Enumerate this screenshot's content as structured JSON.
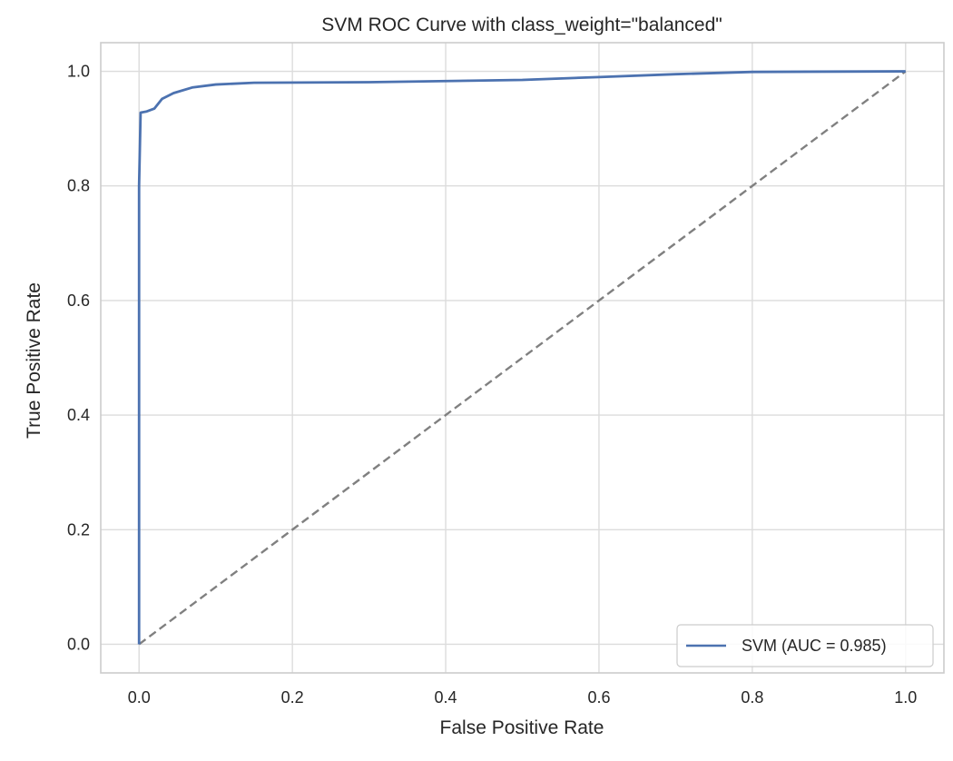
{
  "chart_data": {
    "type": "line",
    "title": "SVM ROC Curve with class_weight=\"balanced\"",
    "xlabel": "False Positive Rate",
    "ylabel": "True Positive Rate",
    "xlim": [
      -0.05,
      1.05
    ],
    "ylim": [
      -0.05,
      1.05
    ],
    "xticks": [
      0.0,
      0.2,
      0.4,
      0.6,
      0.8,
      1.0
    ],
    "xtick_labels": [
      "0.0",
      "0.2",
      "0.4",
      "0.6",
      "0.8",
      "1.0"
    ],
    "yticks": [
      0.0,
      0.2,
      0.4,
      0.6,
      0.8,
      1.0
    ],
    "ytick_labels": [
      "0.0",
      "0.2",
      "0.4",
      "0.6",
      "0.8",
      "1.0"
    ],
    "grid": true,
    "legend": {
      "position": "lower right",
      "entries": [
        "SVM (AUC = 0.985)"
      ]
    },
    "series": [
      {
        "name": "SVM (AUC = 0.985)",
        "color": "#4c72b0",
        "style": "solid",
        "x": [
          0.0,
          0.0,
          0.002,
          0.01,
          0.02,
          0.03,
          0.045,
          0.07,
          0.1,
          0.15,
          0.3,
          0.5,
          0.6,
          0.7,
          0.8,
          1.0
        ],
        "y": [
          0.0,
          0.8,
          0.928,
          0.93,
          0.935,
          0.952,
          0.962,
          0.972,
          0.977,
          0.98,
          0.981,
          0.985,
          0.99,
          0.995,
          0.999,
          1.0
        ]
      },
      {
        "name": "",
        "color": "#808080",
        "style": "dashed",
        "x": [
          0.0,
          1.0
        ],
        "y": [
          0.0,
          1.0
        ]
      }
    ]
  }
}
